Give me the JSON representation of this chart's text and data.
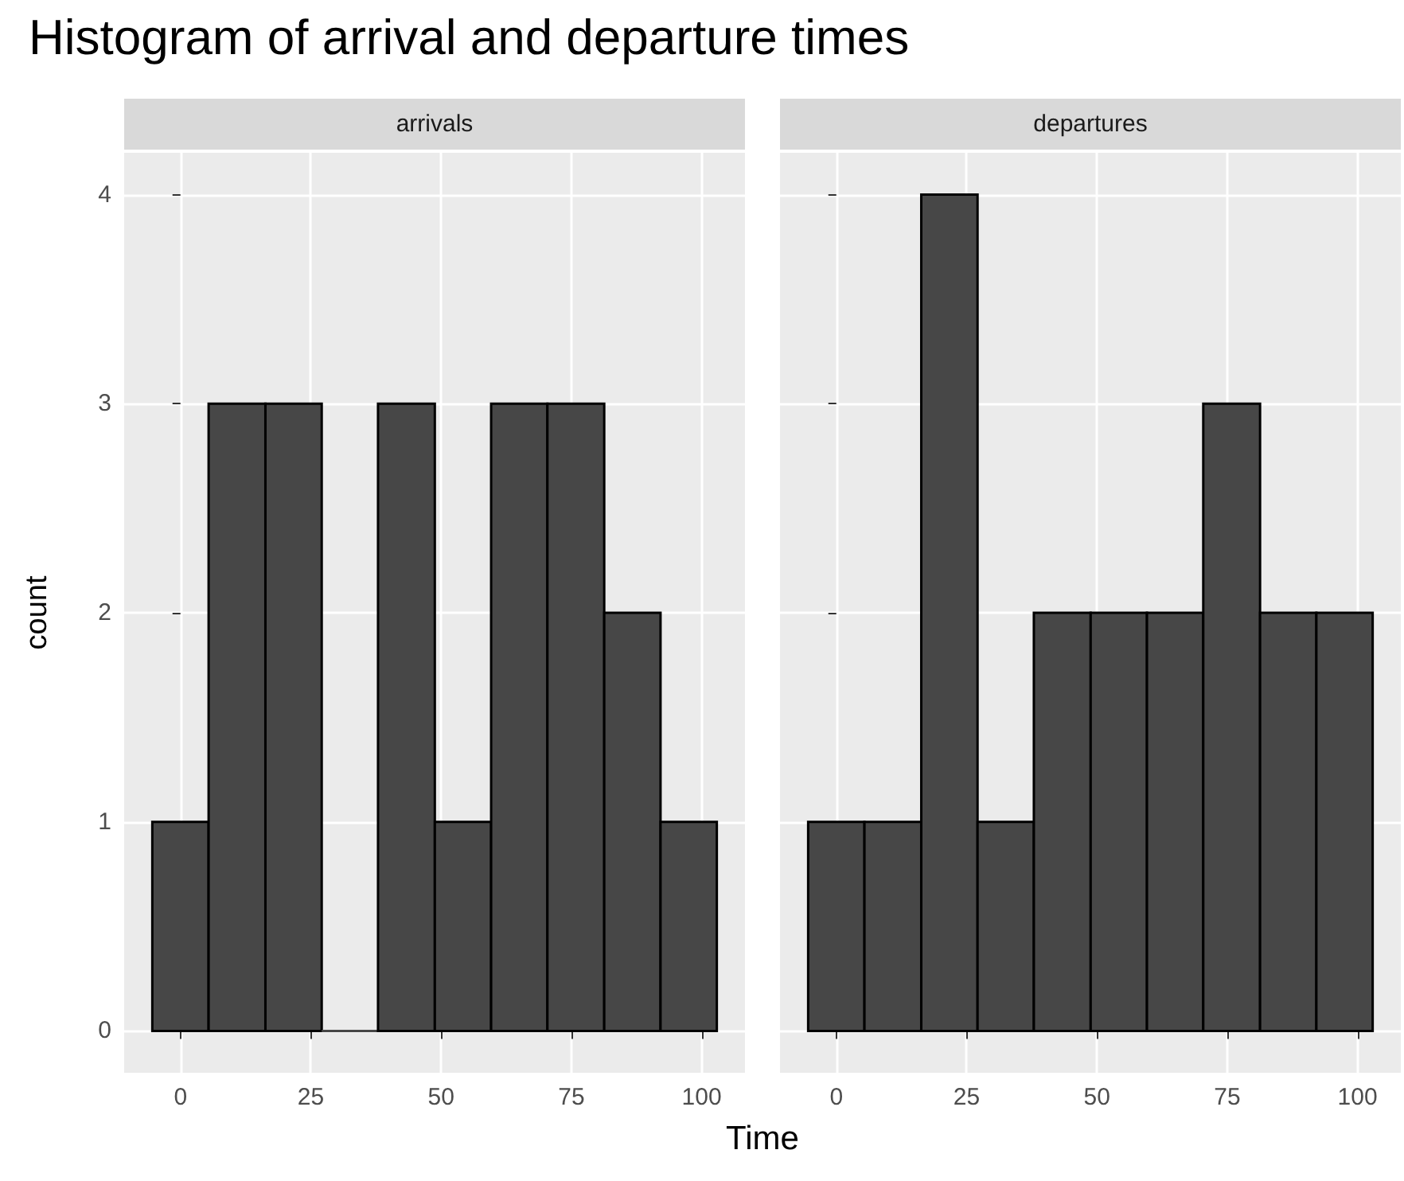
{
  "chart_data": [
    {
      "type": "histogram",
      "title": "Histogram of arrival and departure times",
      "subtitle": "arrivals",
      "xlabel": "Time",
      "ylabel": "count",
      "color": "#474747",
      "bins": [
        -5.4,
        5.4,
        16.3,
        27.1,
        37.9,
        48.8,
        59.6,
        70.4,
        81.3,
        92.1,
        102.9
      ],
      "values": [
        1,
        3,
        3,
        0,
        3,
        1,
        3,
        3,
        2,
        1
      ],
      "xlim": [
        -10.8,
        108.3
      ],
      "xticks": [
        0,
        25,
        50,
        75,
        100
      ],
      "ylim": [
        -0.2,
        4.2
      ],
      "yticks": [
        0,
        1,
        2,
        3,
        4
      ],
      "grid": true
    },
    {
      "type": "histogram",
      "subtitle": "departures",
      "color": "#474747",
      "bins": [
        -5.4,
        5.4,
        16.3,
        27.1,
        37.9,
        48.8,
        59.6,
        70.4,
        81.3,
        92.1,
        102.9
      ],
      "values": [
        1,
        1,
        4,
        1,
        2,
        2,
        2,
        3,
        2,
        2
      ],
      "xlim": [
        -10.8,
        108.3
      ],
      "xticks": [
        0,
        25,
        50,
        75,
        100
      ],
      "ylim": [
        -0.2,
        4.2
      ],
      "yticks": [
        0,
        1,
        2,
        3,
        4
      ],
      "grid": true,
      "tick_labels": "x"
    }
  ]
}
